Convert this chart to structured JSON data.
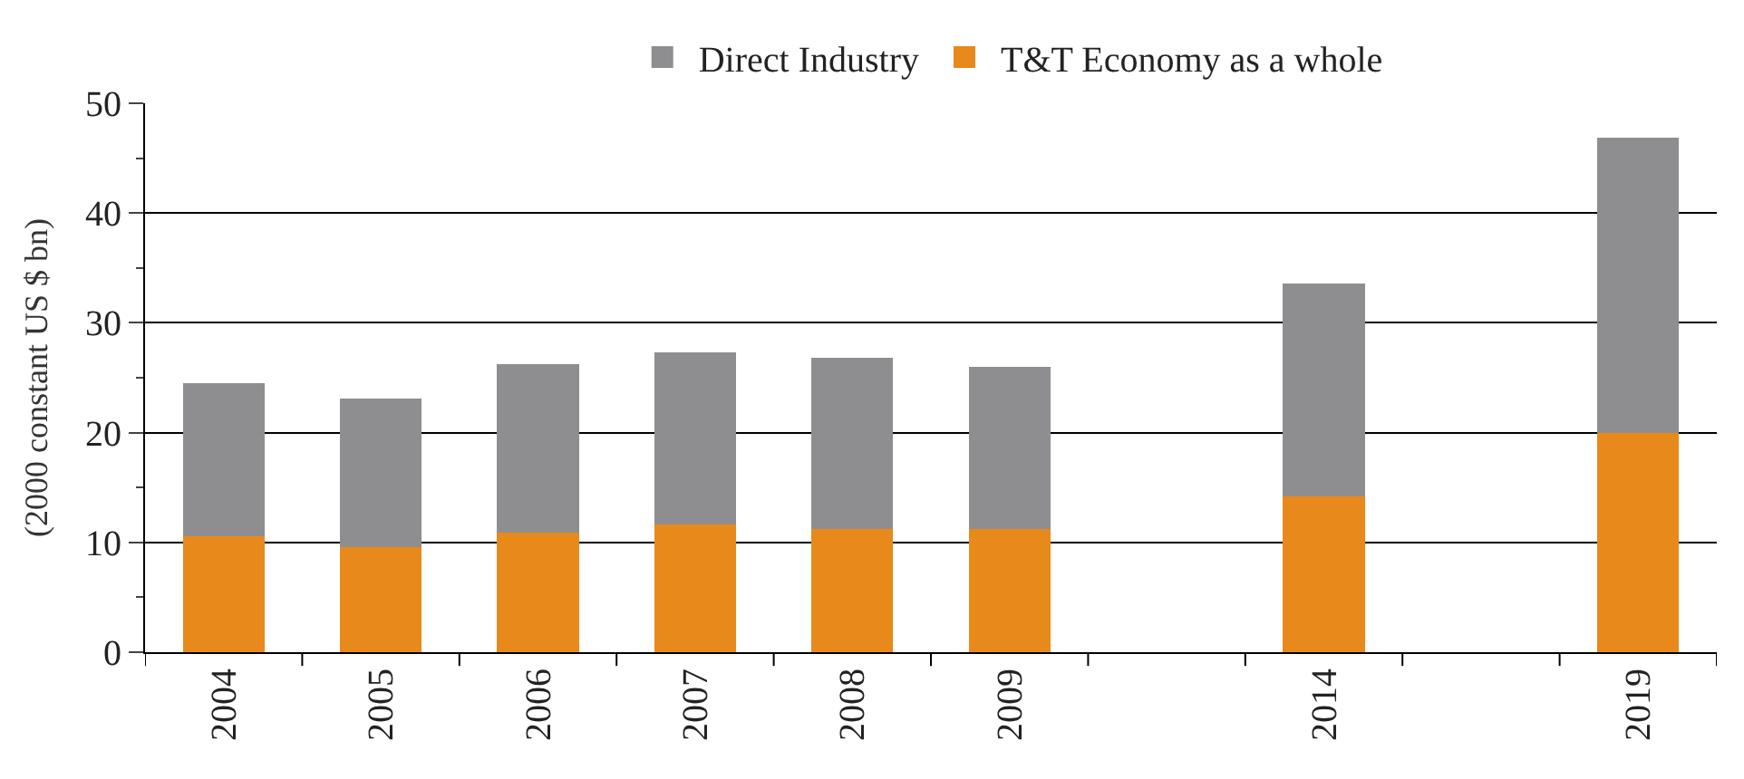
{
  "chart_data": {
    "type": "bar",
    "stacked": true,
    "ylabel": "(2000 constant US $ bn)",
    "categories": [
      "2004",
      "2005",
      "2006",
      "2007",
      "2008",
      "2009",
      null,
      "2014",
      null,
      "2019"
    ],
    "series": [
      {
        "name": "T&T Economy as a whole",
        "color": "#e8891c",
        "values": [
          10.6,
          9.6,
          10.9,
          11.6,
          11.2,
          11.2,
          null,
          14.2,
          null,
          20.0
        ]
      },
      {
        "name": "Direct Industry",
        "color": "#8e8e90",
        "values": [
          13.9,
          13.5,
          15.3,
          15.7,
          15.6,
          14.8,
          null,
          19.4,
          null,
          26.9
        ]
      }
    ],
    "ylim": [
      0,
      50
    ],
    "yticks": [
      0,
      10,
      20,
      30,
      40,
      50
    ],
    "grid": "y",
    "legend": "top"
  }
}
